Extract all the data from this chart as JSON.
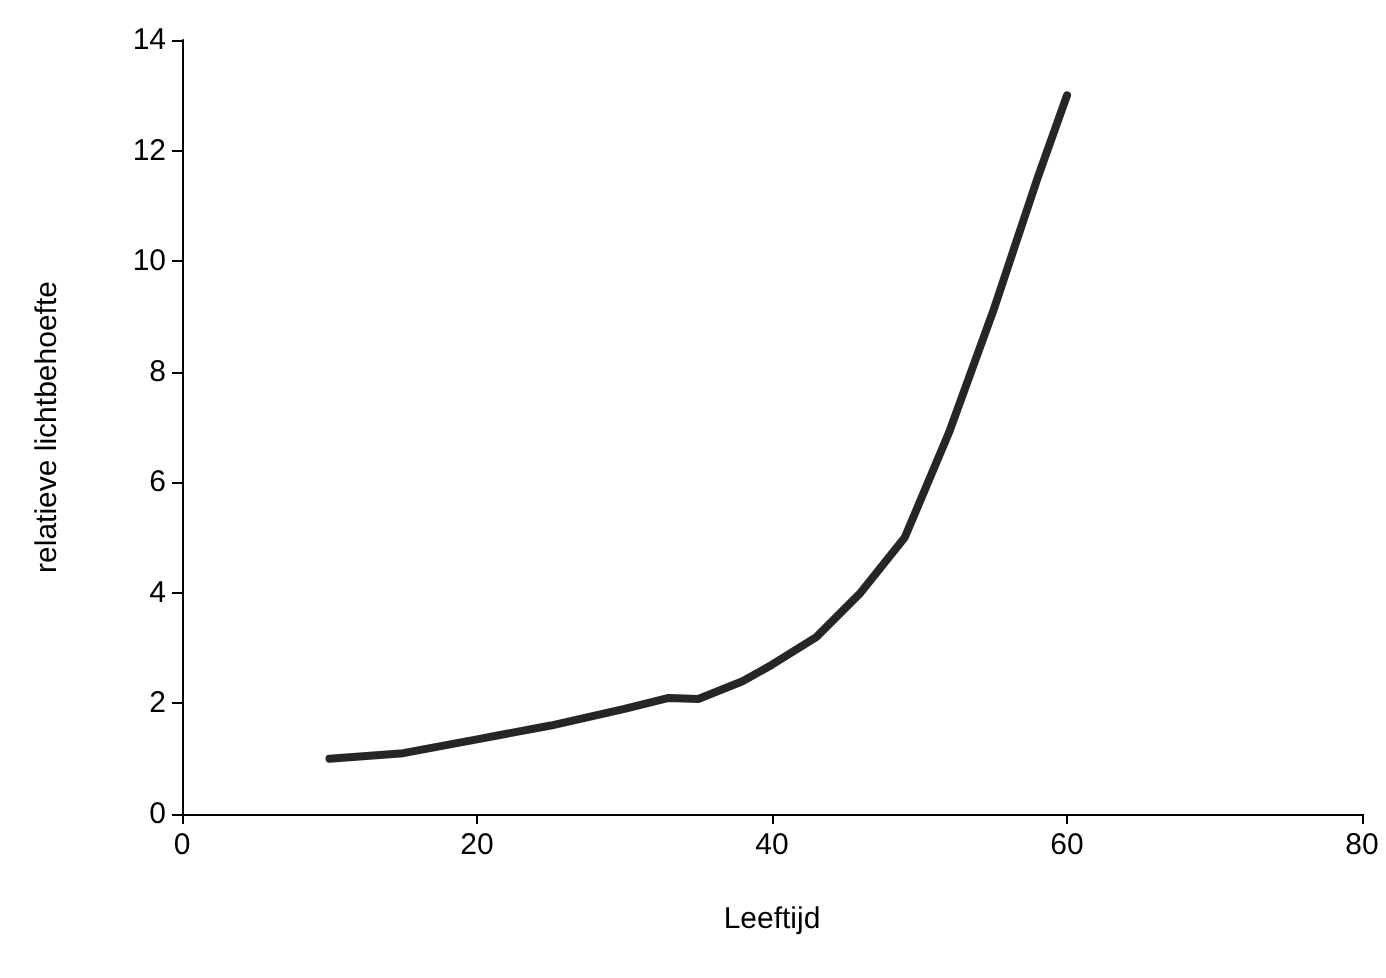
{
  "chart_data": {
    "type": "line",
    "xlabel": "Leeftijd",
    "ylabel": "relatieve lichtbehoefte",
    "x": [
      10,
      15,
      20,
      25,
      30,
      33,
      35,
      38,
      40,
      43,
      46,
      49,
      52,
      55,
      58,
      60
    ],
    "series": [
      {
        "color": "#262626",
        "values": [
          1,
          1.1,
          1.35,
          1.6,
          1.9,
          2.1,
          2.08,
          2.4,
          2.7,
          3.2,
          4.0,
          5.0,
          6.9,
          9.1,
          11.5,
          13
        ]
      }
    ],
    "xlim": [
      0,
      80
    ],
    "xticks": [
      0,
      20,
      40,
      60,
      80
    ],
    "ylim": [
      0,
      14
    ],
    "yticks": [
      0,
      2,
      4,
      6,
      8,
      10,
      12,
      14
    ],
    "grid": false,
    "marker": "none",
    "line_style": "solid"
  }
}
